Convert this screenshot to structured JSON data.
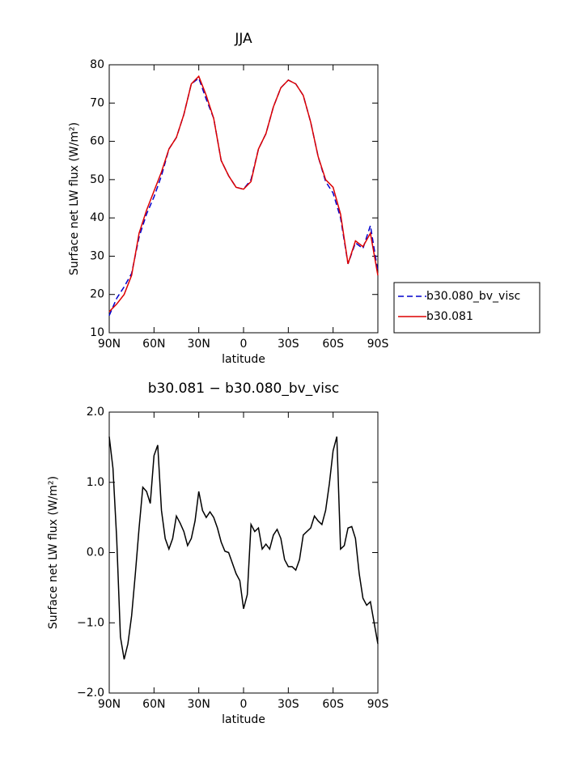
{
  "chart_data": [
    {
      "type": "line",
      "title": "JJA",
      "xlabel": "latitude",
      "ylabel": "Surface net LW flux (W/m²)",
      "xlim": [
        90,
        -90
      ],
      "ylim": [
        10,
        80
      ],
      "xticks": [
        {
          "value": 90,
          "label": "90N"
        },
        {
          "value": 60,
          "label": "60N"
        },
        {
          "value": 30,
          "label": "30N"
        },
        0,
        {
          "value": -30,
          "label": "30S"
        },
        {
          "value": -60,
          "label": "60S"
        },
        {
          "value": -90,
          "label": "90S"
        }
      ],
      "yticks": [
        10,
        20,
        30,
        40,
        50,
        60,
        70,
        80
      ],
      "legend": "outside-right",
      "x": [
        90,
        85,
        80,
        75,
        70,
        65,
        60,
        55,
        50,
        45,
        40,
        35,
        30,
        25,
        20,
        15,
        10,
        5,
        0,
        -5,
        -10,
        -15,
        -20,
        -25,
        -30,
        -35,
        -40,
        -45,
        -50,
        -55,
        -60,
        -65,
        -70,
        -75,
        -80,
        -85,
        -90
      ],
      "series": [
        {
          "name": "b30.080_bv_visc",
          "color": "#0000cc",
          "linestyle": "dashed",
          "values": [
            14.5,
            19,
            22,
            25.5,
            35,
            41,
            45.5,
            51,
            58,
            61,
            67,
            75,
            76.5,
            71,
            66,
            55,
            51,
            48,
            47.5,
            50,
            58,
            62,
            69,
            74,
            76,
            75,
            72,
            65,
            56,
            49.5,
            46.5,
            40,
            28,
            33.5,
            32,
            38,
            26
          ]
        },
        {
          "name": "b30.081",
          "color": "#dd0000",
          "linestyle": "solid",
          "values": [
            15.5,
            17.5,
            20,
            25,
            36,
            42,
            47,
            52,
            58,
            61,
            67,
            75,
            77,
            72,
            66,
            55,
            51,
            48,
            47.5,
            49.5,
            58,
            62,
            69,
            74,
            76,
            75,
            72,
            65,
            56,
            50,
            48,
            41,
            28,
            34,
            32.5,
            36,
            25
          ]
        }
      ]
    },
    {
      "type": "line",
      "title": "b30.081 − b30.080_bv_visc",
      "xlabel": "latitude",
      "ylabel": "Surface net LW flux (W/m²)",
      "xlim": [
        90,
        -90
      ],
      "ylim": [
        -2,
        2
      ],
      "xticks": [
        {
          "value": 90,
          "label": "90N"
        },
        {
          "value": 60,
          "label": "60N"
        },
        {
          "value": 30,
          "label": "30N"
        },
        0,
        {
          "value": -30,
          "label": "30S"
        },
        {
          "value": -60,
          "label": "60S"
        },
        {
          "value": -90,
          "label": "90S"
        }
      ],
      "yticks": [
        {
          "value": 2,
          "label": "2.0"
        },
        {
          "value": 1,
          "label": "1.0"
        },
        {
          "value": 0,
          "label": "0.0"
        },
        {
          "value": -1,
          "label": "−1.0"
        },
        {
          "value": -2,
          "label": "−2.0"
        }
      ],
      "color": "#000000",
      "x": [
        90,
        87.5,
        85,
        82.5,
        80,
        77.5,
        75,
        72.5,
        70,
        67.5,
        65,
        62.5,
        60,
        57.5,
        55,
        52.5,
        50,
        47.5,
        45,
        42.5,
        40,
        37.5,
        35,
        32.5,
        30,
        27.5,
        25,
        22.5,
        20,
        17.5,
        15,
        12.5,
        10,
        7.5,
        5,
        2.5,
        0,
        -2.5,
        -5,
        -7.5,
        -10,
        -12.5,
        -15,
        -17.5,
        -20,
        -22.5,
        -25,
        -27.5,
        -30,
        -32.5,
        -35,
        -37.5,
        -40,
        -42.5,
        -45,
        -47.5,
        -50,
        -52.5,
        -55,
        -57.5,
        -60,
        -62.5,
        -65,
        -67.5,
        -70,
        -72.5,
        -75,
        -77.5,
        -80,
        -82.5,
        -85,
        -87.5,
        -90
      ],
      "values": [
        1.65,
        1.2,
        0.2,
        -1.2,
        -1.52,
        -1.3,
        -0.9,
        -0.3,
        0.35,
        0.93,
        0.87,
        0.7,
        1.38,
        1.53,
        0.6,
        0.2,
        0.05,
        0.2,
        0.52,
        0.42,
        0.3,
        0.1,
        0.2,
        0.45,
        0.87,
        0.6,
        0.5,
        0.58,
        0.5,
        0.35,
        0.15,
        0.02,
        0.0,
        -0.15,
        -0.3,
        -0.4,
        -0.8,
        -0.6,
        0.4,
        0.3,
        0.35,
        0.05,
        0.12,
        0.05,
        0.25,
        0.33,
        0.2,
        -0.1,
        -0.2,
        -0.2,
        -0.25,
        -0.1,
        0.25,
        0.3,
        0.35,
        0.52,
        0.45,
        0.4,
        0.6,
        0.98,
        1.45,
        1.65,
        0.05,
        0.1,
        0.35,
        0.37,
        0.2,
        -0.3,
        -0.65,
        -0.75,
        -0.7,
        -1.0,
        -1.3
      ]
    }
  ]
}
